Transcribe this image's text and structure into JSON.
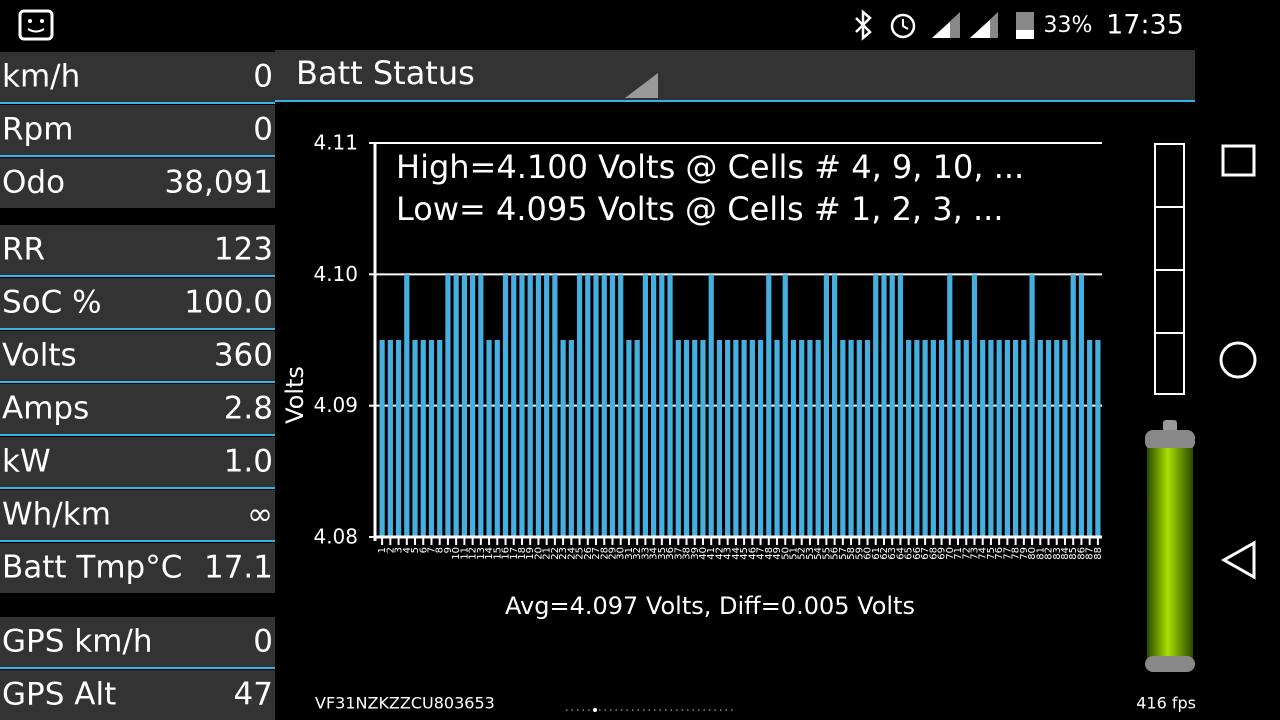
{
  "status_bar": {
    "battery": "33%",
    "time": "17:35"
  },
  "metric_groups": [
    [
      {
        "label": "km/h",
        "value": "0"
      },
      {
        "label": "Rpm",
        "value": "0"
      },
      {
        "label": "Odo",
        "value": "38,091"
      }
    ],
    [
      {
        "label": "RR",
        "value": "123"
      },
      {
        "label": "SoC %",
        "value": "100.0"
      },
      {
        "label": "Volts",
        "value": "360"
      },
      {
        "label": "Amps",
        "value": "2.8"
      },
      {
        "label": "kW",
        "value": "1.0"
      },
      {
        "label": "Wh/km",
        "value": "∞"
      },
      {
        "label": "Batt Tmp°C",
        "value": "17.1"
      }
    ],
    [
      {
        "label": "GPS km/h",
        "value": "0"
      },
      {
        "label": "GPS Alt",
        "value": "47"
      }
    ]
  ],
  "header": {
    "title": "Batt Status"
  },
  "chart_data": {
    "type": "bar",
    "annotations": [
      "High=4.100 Volts @ Cells # 4, 9, 10,  ...",
      "Low= 4.095 Volts @ Cells # 1, 2, 3,  ..."
    ],
    "x_label": "Avg=4.097 Volts, Diff=0.005 Volts",
    "y_label": "Volts",
    "categories": [
      "1",
      "2",
      "3",
      "4",
      "5",
      "6",
      "7",
      "8",
      "9",
      "10",
      "11",
      "12",
      "13",
      "14",
      "15",
      "16",
      "17",
      "18",
      "19",
      "20",
      "21",
      "22",
      "23",
      "24",
      "25",
      "26",
      "27",
      "28",
      "29",
      "30",
      "31",
      "32",
      "33",
      "34",
      "35",
      "36",
      "37",
      "38",
      "39",
      "40",
      "41",
      "42",
      "43",
      "44",
      "45",
      "46",
      "47",
      "48",
      "49",
      "50",
      "51",
      "52",
      "53",
      "54",
      "55",
      "56",
      "57",
      "58",
      "59",
      "60",
      "61",
      "62",
      "63",
      "64",
      "65",
      "66",
      "67",
      "68",
      "69",
      "70",
      "71",
      "72",
      "73",
      "74",
      "75",
      "76",
      "77",
      "78",
      "79",
      "80",
      "81",
      "82",
      "83",
      "84",
      "85",
      "86",
      "87",
      "88"
    ],
    "values": [
      4.095,
      4.095,
      4.095,
      4.1,
      4.095,
      4.095,
      4.095,
      4.095,
      4.1,
      4.1,
      4.1,
      4.1,
      4.1,
      4.095,
      4.095,
      4.1,
      4.1,
      4.1,
      4.1,
      4.1,
      4.1,
      4.1,
      4.095,
      4.095,
      4.1,
      4.1,
      4.1,
      4.1,
      4.1,
      4.1,
      4.095,
      4.095,
      4.1,
      4.1,
      4.1,
      4.1,
      4.095,
      4.095,
      4.095,
      4.095,
      4.1,
      4.095,
      4.095,
      4.095,
      4.095,
      4.095,
      4.095,
      4.1,
      4.095,
      4.1,
      4.095,
      4.095,
      4.095,
      4.095,
      4.1,
      4.1,
      4.095,
      4.095,
      4.095,
      4.095,
      4.1,
      4.1,
      4.1,
      4.1,
      4.095,
      4.095,
      4.095,
      4.095,
      4.095,
      4.1,
      4.095,
      4.095,
      4.1,
      4.095,
      4.095,
      4.095,
      4.095,
      4.095,
      4.095,
      4.1,
      4.095,
      4.095,
      4.095,
      4.095,
      4.1,
      4.1,
      4.095,
      4.095
    ],
    "color": "#45b0e0",
    "ylim": [
      4.08,
      4.11
    ],
    "yticks": [
      4.08,
      4.09,
      {
        "value": 4.1,
        "label": "4.10"
      },
      4.11
    ],
    "grid": true
  },
  "footer": {
    "vin": "VF31NZKZZCU803653",
    "fps": "416 fps"
  }
}
